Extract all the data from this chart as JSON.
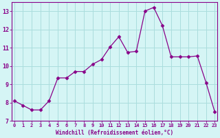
{
  "x": [
    0,
    1,
    2,
    3,
    4,
    5,
    6,
    7,
    8,
    9,
    10,
    11,
    12,
    13,
    14,
    15,
    16,
    17,
    18,
    19,
    20,
    21,
    22,
    23
  ],
  "y": [
    8.1,
    7.85,
    7.6,
    7.6,
    8.1,
    9.35,
    9.35,
    9.7,
    9.7,
    10.1,
    10.35,
    11.05,
    11.6,
    10.75,
    10.8,
    13.0,
    13.2,
    12.2,
    10.5,
    10.5,
    10.5,
    10.55,
    9.1,
    7.5
  ],
  "line_color": "#880088",
  "marker": "D",
  "marker_size": 2.5,
  "bg_color": "#d5f5f5",
  "grid_color": "#aadddd",
  "xlabel": "Windchill (Refroidissement éolien,°C)",
  "xlabel_color": "#880088",
  "tick_color": "#880088",
  "ylim": [
    7,
    13.5
  ],
  "yticks": [
    7,
    8,
    9,
    10,
    11,
    12,
    13
  ],
  "xticks": [
    0,
    1,
    2,
    3,
    4,
    5,
    6,
    7,
    8,
    9,
    10,
    11,
    12,
    13,
    14,
    15,
    16,
    17,
    18,
    19,
    20,
    21,
    22,
    23
  ],
  "spine_color": "#880088",
  "xlim_left": -0.3,
  "xlim_right": 23.3
}
